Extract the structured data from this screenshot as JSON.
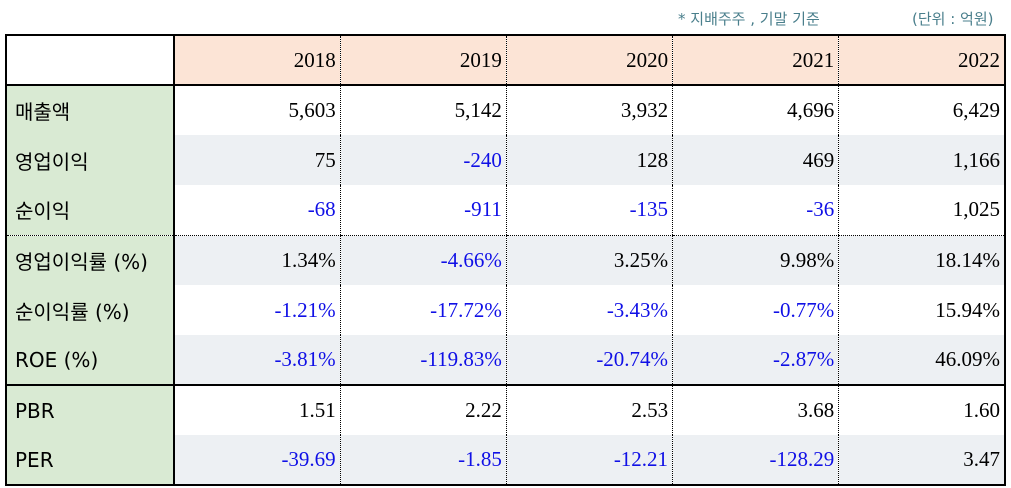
{
  "notes": {
    "scope": "* 지배주주 , 기말 기준",
    "unit": "(단위 : 억원)"
  },
  "years": [
    "2018",
    "2019",
    "2020",
    "2021",
    "2022"
  ],
  "colors": {
    "negative": "#1010e6",
    "header_bg": "#fce4d6",
    "label_bg": "#d9ead3",
    "shade_bg": "#edf0f3"
  },
  "rows": [
    {
      "label": "매출액",
      "values": [
        "5,603",
        "5,142",
        "3,932",
        "4,696",
        "6,429"
      ]
    },
    {
      "label": "영업이익",
      "values": [
        "75",
        "-240",
        "128",
        "469",
        "1,166"
      ]
    },
    {
      "label": "순이익",
      "values": [
        "-68",
        "-911",
        "-135",
        "-36",
        "1,025"
      ]
    },
    {
      "label": "영업이익률 (%)",
      "values": [
        "1.34%",
        "-4.66%",
        "3.25%",
        "9.98%",
        "18.14%"
      ]
    },
    {
      "label": "순이익률 (%)",
      "values": [
        "-1.21%",
        "-17.72%",
        "-3.43%",
        "-0.77%",
        "15.94%"
      ]
    },
    {
      "label": "ROE (%)",
      "values": [
        "-3.81%",
        "-119.83%",
        "-20.74%",
        "-2.87%",
        "46.09%"
      ]
    },
    {
      "label": "PBR",
      "values": [
        "1.51",
        "2.22",
        "2.53",
        "3.68",
        "1.60"
      ]
    },
    {
      "label": "PER",
      "values": [
        "-39.69",
        "-1.85",
        "-12.21",
        "-128.29",
        "3.47"
      ]
    }
  ]
}
